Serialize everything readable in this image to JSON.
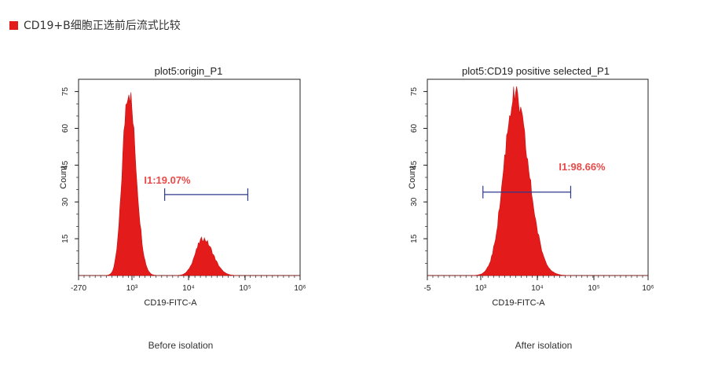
{
  "heading": {
    "text": "CD19+B细胞正选前后流式比较",
    "color": "#e41b1b"
  },
  "chart_data": [
    {
      "type": "area",
      "title": "plot5:origin_P1",
      "xlabel": "CD19-FITC-A",
      "ylabel": "Count",
      "x_tick_labels": [
        "-270",
        "10³",
        "10⁴",
        "10⁵",
        "10⁶"
      ],
      "y_tick_labels": [
        "15",
        "30",
        "45",
        "60",
        "75"
      ],
      "ylim": [
        0,
        80
      ],
      "fill_color": "#e41b1b",
      "gate": {
        "label": "I1:19.07%",
        "color": "#e84a4a",
        "line_color": "#2e3a8c",
        "y": 33,
        "x_from": 3.28,
        "x_to": 4.95
      },
      "x_scale": "biexponential (log above 10³)",
      "peaks": [
        {
          "center_decade": 2.55,
          "peak_count": 76
        },
        {
          "center_decade": 4.05,
          "peak_count": 15
        }
      ],
      "caption": "Before isolation"
    },
    {
      "type": "area",
      "title": "plot5:CD19 positive selected_P1",
      "xlabel": "CD19-FITC-A",
      "ylabel": "Count",
      "x_tick_labels": [
        "-5",
        "10³",
        "10⁴",
        "10⁵",
        "10⁶"
      ],
      "y_tick_labels": [
        "15",
        "30",
        "45",
        "60",
        "75"
      ],
      "ylim": [
        0,
        80
      ],
      "fill_color": "#e41b1b",
      "gate": {
        "label": "I1:98.66%",
        "color": "#e84a4a",
        "line_color": "#2e3a8c",
        "y": 34,
        "x_from": 2.97,
        "x_to": 4.58
      },
      "x_scale": "biexponential (log above 10³)",
      "peaks": [
        {
          "center_decade": 3.55,
          "peak_count": 73
        }
      ],
      "caption": "After isolation"
    }
  ]
}
